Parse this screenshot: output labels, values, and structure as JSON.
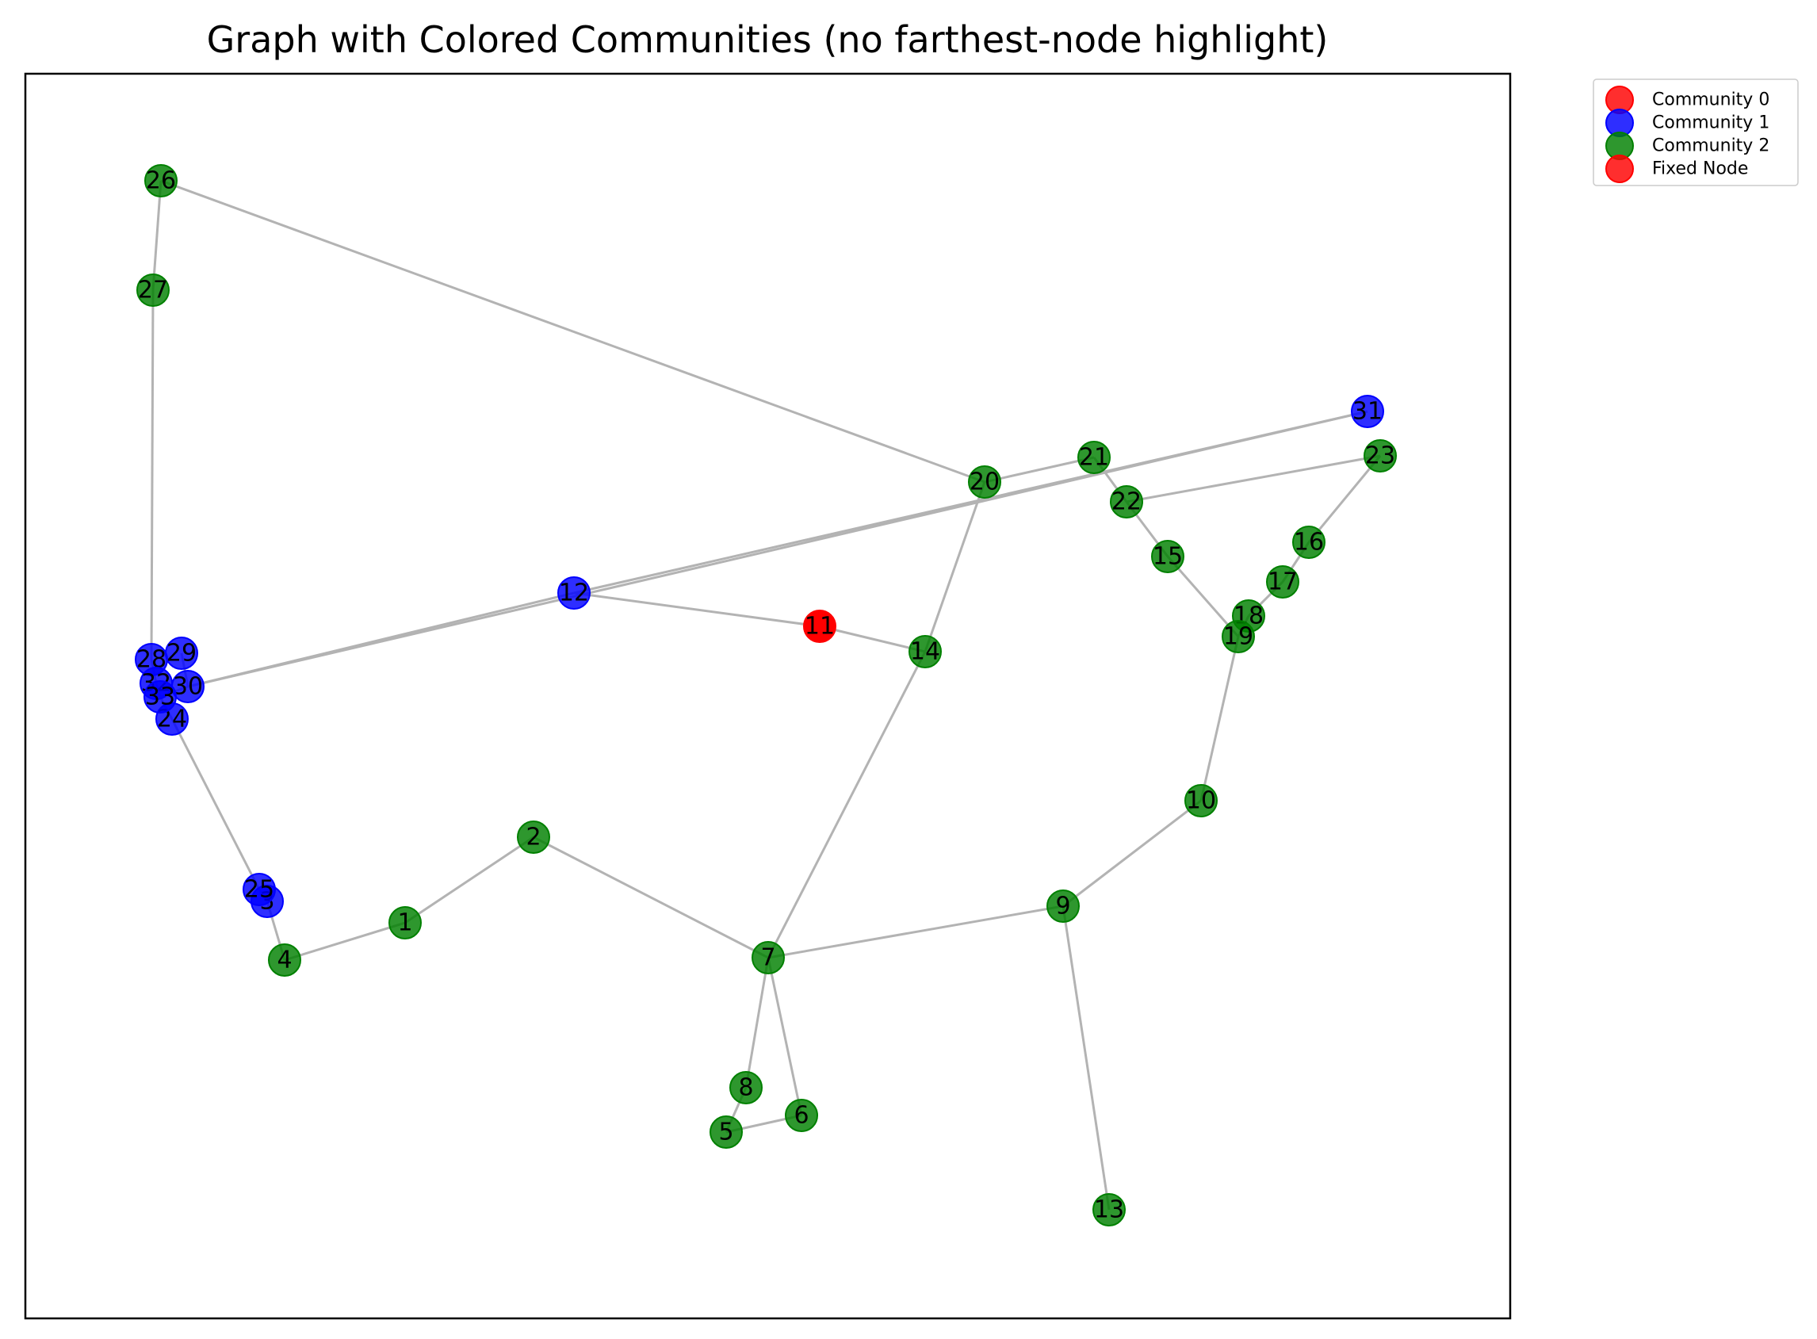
{
  "title": "Graph with Colored Communities (no farthest-node highlight)",
  "colors": {
    "community_0": "#ff0000",
    "community_1": "#0000ff",
    "community_2": "#008000",
    "fixed_node": "#ff0000",
    "edge": "#b3b3b3"
  },
  "legend": [
    {
      "label": "Community 0",
      "color": "#ff0000"
    },
    {
      "label": "Community 1",
      "color": "#0000ff"
    },
    {
      "label": "Community 2",
      "color": "#008000"
    },
    {
      "label": "Fixed Node",
      "color": "#ff0000"
    }
  ],
  "nodes": [
    {
      "id": "1",
      "community": 2
    },
    {
      "id": "2",
      "community": 2
    },
    {
      "id": "3",
      "community": 1
    },
    {
      "id": "4",
      "community": 2
    },
    {
      "id": "5",
      "community": 2
    },
    {
      "id": "6",
      "community": 2
    },
    {
      "id": "7",
      "community": 2
    },
    {
      "id": "8",
      "community": 2
    },
    {
      "id": "9",
      "community": 2
    },
    {
      "id": "10",
      "community": 2
    },
    {
      "id": "11",
      "community": "fixed"
    },
    {
      "id": "12",
      "community": 1
    },
    {
      "id": "13",
      "community": 2
    },
    {
      "id": "14",
      "community": 2
    },
    {
      "id": "15",
      "community": 2
    },
    {
      "id": "16",
      "community": 2
    },
    {
      "id": "17",
      "community": 2
    },
    {
      "id": "18",
      "community": 2
    },
    {
      "id": "19",
      "community": 2
    },
    {
      "id": "20",
      "community": 2
    },
    {
      "id": "21",
      "community": 2
    },
    {
      "id": "22",
      "community": 2
    },
    {
      "id": "23",
      "community": 2
    },
    {
      "id": "24",
      "community": 1
    },
    {
      "id": "25",
      "community": 1
    },
    {
      "id": "26",
      "community": 2
    },
    {
      "id": "27",
      "community": 2
    },
    {
      "id": "28",
      "community": 1
    },
    {
      "id": "29",
      "community": 1
    },
    {
      "id": "30",
      "community": 1
    },
    {
      "id": "31",
      "community": 1
    },
    {
      "id": "32",
      "community": 1
    },
    {
      "id": "33",
      "community": 1
    }
  ],
  "edges": [
    [
      "26",
      "27"
    ],
    [
      "26",
      "20"
    ],
    [
      "27",
      "28"
    ],
    [
      "31",
      "12"
    ],
    [
      "31",
      "30"
    ],
    [
      "12",
      "30"
    ],
    [
      "12",
      "11"
    ],
    [
      "11",
      "14"
    ],
    [
      "14",
      "20"
    ],
    [
      "14",
      "7"
    ],
    [
      "20",
      "21"
    ],
    [
      "21",
      "22"
    ],
    [
      "22",
      "23"
    ],
    [
      "22",
      "15"
    ],
    [
      "15",
      "19"
    ],
    [
      "23",
      "16"
    ],
    [
      "16",
      "17"
    ],
    [
      "17",
      "18"
    ],
    [
      "18",
      "19"
    ],
    [
      "19",
      "10"
    ],
    [
      "10",
      "9"
    ],
    [
      "9",
      "7"
    ],
    [
      "9",
      "13"
    ],
    [
      "7",
      "2"
    ],
    [
      "7",
      "8"
    ],
    [
      "7",
      "6"
    ],
    [
      "8",
      "5"
    ],
    [
      "5",
      "6"
    ],
    [
      "2",
      "1"
    ],
    [
      "1",
      "4"
    ],
    [
      "4",
      "3"
    ],
    [
      "3",
      "25"
    ],
    [
      "25",
      "24"
    ],
    [
      "24",
      "33"
    ],
    [
      "28",
      "32"
    ],
    [
      "29",
      "30"
    ],
    [
      "32",
      "33"
    ],
    [
      "30",
      "33"
    ]
  ]
}
